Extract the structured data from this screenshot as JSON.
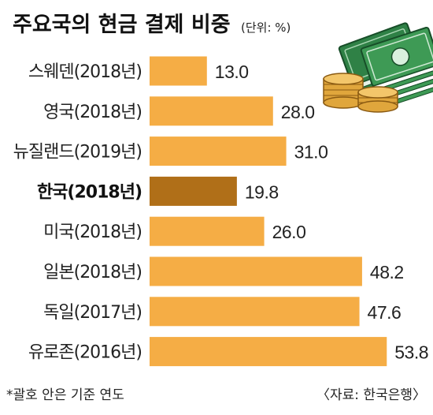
{
  "chart_data": {
    "type": "bar",
    "orientation": "horizontal",
    "title": "주요국의 현금 결제 비중",
    "unit_note": "(단위: %)",
    "categories": [
      "스웨덴(2018년)",
      "영국(2018년)",
      "뉴질랜드(2019년)",
      "한국(2018년)",
      "미국(2018년)",
      "일본(2018년)",
      "독일(2017년)",
      "유로존(2016년)"
    ],
    "values": [
      13.0,
      28.0,
      31.0,
      19.8,
      26.0,
      48.2,
      47.6,
      53.8
    ],
    "value_labels": [
      "13.0",
      "28.0",
      "31.0",
      "19.8",
      "26.0",
      "48.2",
      "47.6",
      "53.8"
    ],
    "highlight": "한국(2018년)",
    "xlim": [
      0,
      60
    ],
    "grid": false,
    "legend": "none",
    "footnote": "*괄호 안은 기준 연도",
    "source": "〈자료: 한국은행〉"
  },
  "colors": {
    "bar": "#f5ad45",
    "bar_highlight": "#b06f18",
    "money_dark": "#1f6a35",
    "money_light": "#3e9a55",
    "coin": "#e8b04a"
  },
  "icons": [
    "money-stack-icon",
    "coin-stack-icon"
  ]
}
